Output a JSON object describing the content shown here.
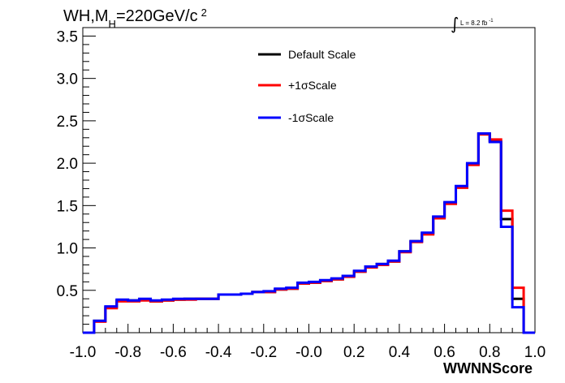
{
  "chart_data": {
    "type": "line",
    "title_parts": {
      "main": "WH,M",
      "sub": "H",
      "rest": "=220GeV/c",
      "sup": "2"
    },
    "lumi": {
      "integral": "∫",
      "text": "L = 8.2 fb",
      "sup": "-1"
    },
    "xlabel": "WWNNScore",
    "ylabel": "",
    "xlim": [
      -1.0,
      1.0
    ],
    "ylim": [
      0,
      3.6
    ],
    "xticks": [
      "-1.0",
      "-0.8",
      "-0.6",
      "-0.4",
      "-0.2",
      "-0.0",
      "0.2",
      "0.4",
      "0.6",
      "0.8",
      "1.0"
    ],
    "yticks": [
      "0.5",
      "1.0",
      "1.5",
      "2.0",
      "2.5",
      "3.0",
      "3.5"
    ],
    "grid": false,
    "legend_position": "top-center",
    "bin_edges": [
      -1.0,
      -0.95,
      -0.9,
      -0.85,
      -0.8,
      -0.75,
      -0.7,
      -0.65,
      -0.6,
      -0.55,
      -0.5,
      -0.45,
      -0.4,
      -0.35,
      -0.3,
      -0.25,
      -0.2,
      -0.15,
      -0.1,
      -0.05,
      0.0,
      0.05,
      0.1,
      0.15,
      0.2,
      0.25,
      0.3,
      0.35,
      0.4,
      0.45,
      0.5,
      0.55,
      0.6,
      0.65,
      0.7,
      0.75,
      0.8,
      0.85,
      0.9,
      0.95,
      1.0
    ],
    "series": [
      {
        "name": "Default Scale",
        "color": "#000000",
        "values": [
          0.0,
          0.14,
          0.3,
          0.38,
          0.38,
          0.39,
          0.37,
          0.38,
          0.39,
          0.4,
          0.4,
          0.4,
          0.45,
          0.45,
          0.46,
          0.48,
          0.48,
          0.51,
          0.52,
          0.58,
          0.59,
          0.61,
          0.63,
          0.67,
          0.72,
          0.78,
          0.81,
          0.84,
          0.96,
          1.08,
          1.17,
          1.36,
          1.53,
          1.72,
          1.99,
          2.35,
          2.26,
          1.34,
          0.4,
          0.0
        ]
      },
      {
        "name": "+1σScale",
        "color": "#ff0000",
        "values": [
          0.0,
          0.13,
          0.29,
          0.37,
          0.37,
          0.38,
          0.37,
          0.38,
          0.39,
          0.39,
          0.4,
          0.4,
          0.45,
          0.45,
          0.46,
          0.48,
          0.48,
          0.51,
          0.52,
          0.58,
          0.59,
          0.61,
          0.63,
          0.66,
          0.72,
          0.77,
          0.8,
          0.84,
          0.95,
          1.07,
          1.16,
          1.35,
          1.52,
          1.71,
          1.98,
          2.34,
          2.28,
          1.44,
          0.53,
          0.0
        ]
      },
      {
        "name": "-1σScale",
        "color": "#0000ff",
        "values": [
          0.0,
          0.14,
          0.31,
          0.39,
          0.38,
          0.4,
          0.38,
          0.39,
          0.4,
          0.4,
          0.4,
          0.4,
          0.45,
          0.45,
          0.46,
          0.48,
          0.49,
          0.52,
          0.53,
          0.59,
          0.6,
          0.62,
          0.64,
          0.67,
          0.73,
          0.78,
          0.81,
          0.85,
          0.96,
          1.08,
          1.18,
          1.37,
          1.54,
          1.73,
          2.0,
          2.35,
          2.25,
          1.25,
          0.3,
          0.0
        ]
      }
    ]
  }
}
